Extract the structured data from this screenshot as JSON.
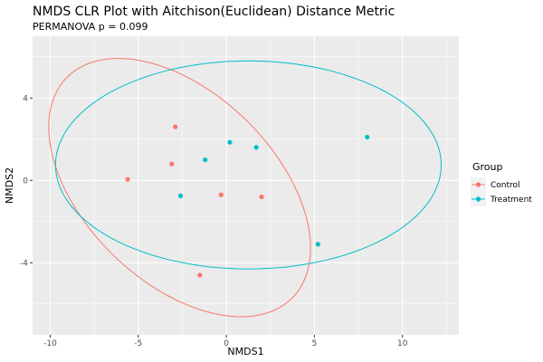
{
  "chart_data": {
    "type": "scatter",
    "title": "NMDS CLR Plot with Aitchison(Euclidean) Distance Metric",
    "subtitle": "PERMANOVA p = 0.099",
    "xlabel": "NMDS1",
    "ylabel": "NMDS2",
    "xlim": [
      -11,
      13.2
    ],
    "ylim": [
      -7.5,
      7.0
    ],
    "x_ticks": [
      -10,
      -5,
      0,
      5,
      10
    ],
    "x_tick_labels": [
      "-10",
      "-5",
      "0",
      "5",
      "10"
    ],
    "y_ticks": [
      -4,
      0,
      4
    ],
    "y_tick_labels": [
      "-4",
      "0",
      "4"
    ],
    "grid": true,
    "legend": {
      "title": "Group",
      "position": "right"
    },
    "series": [
      {
        "name": "Control",
        "color": "#F8766D",
        "points": [
          {
            "x": -2.9,
            "y": 2.6
          },
          {
            "x": -3.1,
            "y": 0.8
          },
          {
            "x": -5.6,
            "y": 0.05
          },
          {
            "x": -0.3,
            "y": -0.7
          },
          {
            "x": 2.0,
            "y": -0.8
          },
          {
            "x": -1.5,
            "y": -4.6
          }
        ],
        "ellipse": {
          "cx": -2.65,
          "cy": -0.35,
          "rx": 8.4,
          "ry": 4.9,
          "angle_deg": -35
        }
      },
      {
        "name": "Treatment",
        "color": "#00BFC4",
        "points": [
          {
            "x": 0.2,
            "y": 1.85
          },
          {
            "x": 1.7,
            "y": 1.6
          },
          {
            "x": -1.2,
            "y": 1.0
          },
          {
            "x": -2.6,
            "y": -0.75
          },
          {
            "x": 8.0,
            "y": 2.1
          },
          {
            "x": 5.2,
            "y": -3.1
          }
        ],
        "ellipse": {
          "cx": 1.25,
          "cy": 0.75,
          "rx": 10.95,
          "ry": 5.05,
          "angle_deg": 0
        }
      }
    ]
  }
}
